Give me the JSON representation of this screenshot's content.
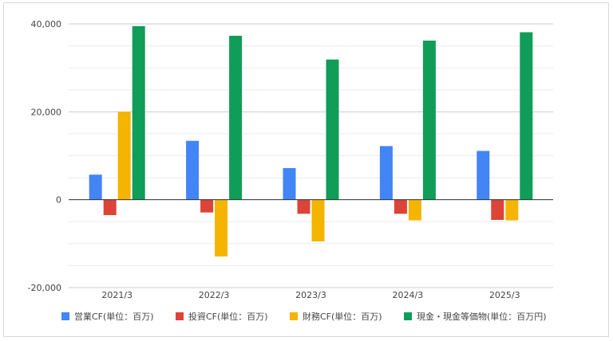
{
  "chart_data": {
    "type": "bar",
    "categories": [
      "2021/3",
      "2022/3",
      "2023/3",
      "2024/3",
      "2025/3"
    ],
    "series": [
      {
        "name": "営業CF(単位：百万)",
        "color": "#4285F4",
        "values": [
          5700,
          13400,
          7200,
          12200,
          11100
        ]
      },
      {
        "name": "投資CF(単位：百万)",
        "color": "#DB4437",
        "values": [
          -3500,
          -2900,
          -3200,
          -3200,
          -4600
        ]
      },
      {
        "name": "財務CF(単位：百万)",
        "color": "#F4B400",
        "values": [
          20000,
          -12900,
          -9500,
          -4700,
          -4700
        ]
      },
      {
        "name": "現金・現金等価物(単位：百万円)",
        "color": "#0F9D58",
        "values": [
          39500,
          37300,
          31900,
          36200,
          38100
        ]
      }
    ],
    "ylim": [
      -20000,
      40000
    ],
    "yticks": [
      "40,000",
      "20,000",
      "0",
      "-20,000"
    ],
    "ytick_values": [
      40000,
      20000,
      0,
      -20000
    ],
    "grid": true,
    "legend_position": "bottom",
    "title": "",
    "xlabel": "",
    "ylabel": ""
  }
}
